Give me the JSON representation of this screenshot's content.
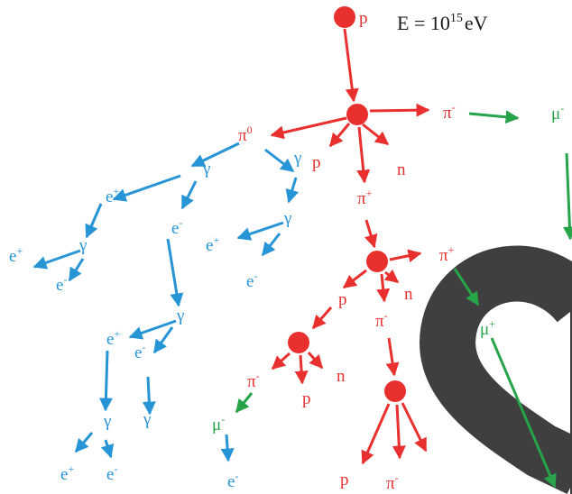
{
  "energy": {
    "text": "E = 10",
    "exponent": "15",
    "unit": "eV"
  },
  "colors": {
    "hadronic": "#e8312f",
    "electromagnetic": "#2794d6",
    "muonic": "#27a34a",
    "watermark": "#3f3f3f"
  },
  "particles": [
    {
      "id": "p0",
      "base": "p",
      "sup": "",
      "channel": "hadronic"
    },
    {
      "id": "pim-top",
      "base": "π",
      "sup": "-",
      "channel": "hadronic"
    },
    {
      "id": "mum-top",
      "base": "μ",
      "sup": "-",
      "channel": "muonic"
    },
    {
      "id": "pi0",
      "base": "π",
      "sup": "0",
      "channel": "hadronic"
    },
    {
      "id": "p1",
      "base": "p",
      "sup": "",
      "channel": "hadronic"
    },
    {
      "id": "n1",
      "base": "n",
      "sup": "",
      "channel": "hadronic"
    },
    {
      "id": "pip1",
      "base": "π",
      "sup": "+",
      "channel": "hadronic"
    },
    {
      "id": "pip2",
      "base": "π",
      "sup": "+",
      "channel": "hadronic"
    },
    {
      "id": "n2",
      "base": "n",
      "sup": "",
      "channel": "hadronic"
    },
    {
      "id": "p2",
      "base": "p",
      "sup": "",
      "channel": "hadronic"
    },
    {
      "id": "pim2",
      "base": "π",
      "sup": "-",
      "channel": "hadronic"
    },
    {
      "id": "mup",
      "base": "μ",
      "sup": "+",
      "channel": "muonic"
    },
    {
      "id": "pim3",
      "base": "π",
      "sup": "-",
      "channel": "hadronic"
    },
    {
      "id": "n3",
      "base": "n",
      "sup": "",
      "channel": "hadronic"
    },
    {
      "id": "p3",
      "base": "p",
      "sup": "",
      "channel": "hadronic"
    },
    {
      "id": "mum2",
      "base": "μ",
      "sup": "-",
      "channel": "muonic"
    },
    {
      "id": "em-e2",
      "base": "e",
      "sup": "-",
      "channel": "electromagnetic"
    },
    {
      "id": "p4",
      "base": "p",
      "sup": "",
      "channel": "hadronic"
    },
    {
      "id": "pim4",
      "base": "π",
      "sup": "-",
      "channel": "hadronic"
    },
    {
      "id": "g1",
      "base": "γ",
      "sup": "",
      "channel": "electromagnetic"
    },
    {
      "id": "ep1",
      "base": "e",
      "sup": "+",
      "channel": "electromagnetic"
    },
    {
      "id": "em1",
      "base": "e",
      "sup": "-",
      "channel": "electromagnetic"
    },
    {
      "id": "g2",
      "base": "γ",
      "sup": "",
      "channel": "electromagnetic"
    },
    {
      "id": "ep2",
      "base": "e",
      "sup": "+",
      "channel": "electromagnetic"
    },
    {
      "id": "em2",
      "base": "e",
      "sup": "-",
      "channel": "electromagnetic"
    },
    {
      "id": "g3",
      "base": "γ",
      "sup": "",
      "channel": "electromagnetic"
    },
    {
      "id": "ep3",
      "base": "e",
      "sup": "+",
      "channel": "electromagnetic"
    },
    {
      "id": "em3",
      "base": "e",
      "sup": "-",
      "channel": "electromagnetic"
    },
    {
      "id": "g4",
      "base": "γ",
      "sup": "",
      "channel": "electromagnetic"
    },
    {
      "id": "ep4",
      "base": "e",
      "sup": "+",
      "channel": "electromagnetic"
    },
    {
      "id": "em4",
      "base": "e",
      "sup": "-",
      "channel": "electromagnetic"
    },
    {
      "id": "g5",
      "base": "γ",
      "sup": "",
      "channel": "electromagnetic"
    },
    {
      "id": "g6",
      "base": "γ",
      "sup": "",
      "channel": "electromagnetic"
    },
    {
      "id": "ep5",
      "base": "e",
      "sup": "+",
      "channel": "electromagnetic"
    },
    {
      "id": "em5",
      "base": "e",
      "sup": "-",
      "channel": "electromagnetic"
    }
  ]
}
